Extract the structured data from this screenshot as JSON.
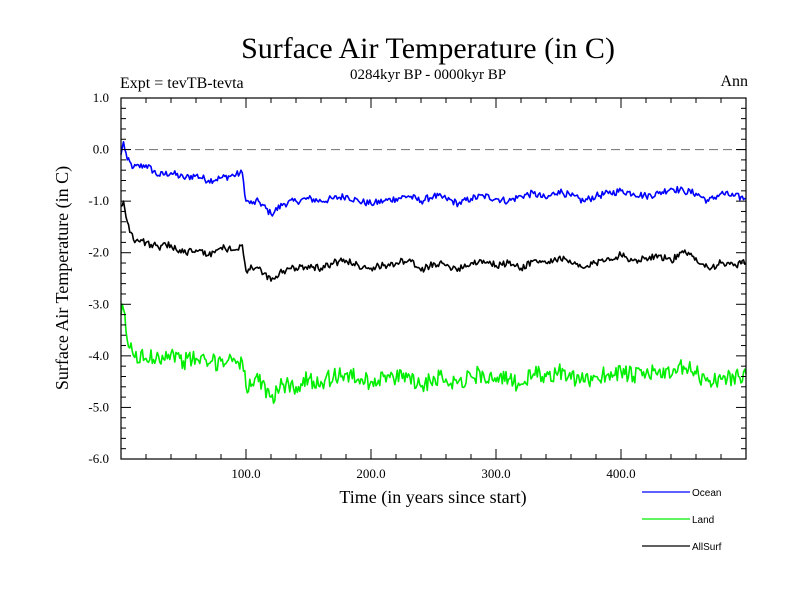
{
  "chart_data": {
    "type": "line",
    "title": "Surface Air Temperature (in C)",
    "subtitle": "0284kyr BP - 0000kyr BP",
    "left_annotation": "Expt = tevTB-tevta",
    "right_annotation": "Ann",
    "xlabel": "Time (in years since start)",
    "ylabel": "Surface Air Temperature (in C)",
    "xlim": [
      0,
      500
    ],
    "ylim": [
      -6.0,
      1.0
    ],
    "x_ticks": [
      100,
      200,
      300,
      400
    ],
    "x_tick_labels": [
      "100.0",
      "200.0",
      "300.0",
      "400.0"
    ],
    "y_ticks": [
      1.0,
      0.0,
      -1.0,
      -2.0,
      -3.0,
      -4.0,
      -5.0,
      -6.0
    ],
    "y_tick_labels": [
      "1.0",
      "0.0",
      "-1.0",
      "-2.0",
      "-3.0",
      "-4.0",
      "-5.0",
      "-6.0"
    ],
    "reference_line": {
      "y": 0.0,
      "style": "dashed",
      "color": "#808080"
    },
    "series": [
      {
        "name": "Ocean",
        "color": "#0000ff",
        "x": [
          0,
          2,
          5,
          10,
          20,
          30,
          40,
          50,
          60,
          70,
          80,
          90,
          97,
          100,
          105,
          110,
          120,
          130,
          140,
          150,
          160,
          170,
          180,
          190,
          200,
          210,
          220,
          230,
          240,
          250,
          260,
          270,
          280,
          290,
          300,
          310,
          320,
          330,
          340,
          350,
          360,
          370,
          380,
          390,
          400,
          410,
          420,
          430,
          440,
          450,
          460,
          470,
          480,
          490,
          500
        ],
        "values": [
          -0.1,
          0.15,
          -0.2,
          -0.35,
          -0.3,
          -0.5,
          -0.45,
          -0.55,
          -0.5,
          -0.6,
          -0.55,
          -0.5,
          -0.45,
          -1.0,
          -1.05,
          -1.0,
          -1.25,
          -1.05,
          -1.0,
          -0.95,
          -1.0,
          -0.95,
          -0.9,
          -1.0,
          -1.05,
          -1.0,
          -0.95,
          -0.9,
          -1.0,
          -0.9,
          -0.95,
          -1.05,
          -0.95,
          -0.9,
          -0.95,
          -1.0,
          -0.9,
          -0.85,
          -0.95,
          -0.8,
          -0.9,
          -1.0,
          -0.9,
          -0.85,
          -0.8,
          -0.85,
          -0.9,
          -0.85,
          -0.75,
          -0.8,
          -0.85,
          -1.0,
          -0.85,
          -0.9,
          -0.95
        ]
      },
      {
        "name": "Land",
        "color": "#00ee00",
        "x": [
          0,
          2,
          5,
          10,
          20,
          30,
          40,
          50,
          60,
          70,
          80,
          90,
          97,
          100,
          105,
          110,
          120,
          130,
          140,
          150,
          160,
          170,
          180,
          190,
          200,
          210,
          220,
          230,
          240,
          250,
          260,
          270,
          280,
          290,
          300,
          310,
          320,
          330,
          340,
          350,
          360,
          370,
          380,
          390,
          400,
          410,
          420,
          430,
          440,
          450,
          460,
          470,
          480,
          490,
          500
        ],
        "values": [
          -3.2,
          -3.1,
          -3.7,
          -4.0,
          -4.05,
          -4.0,
          -3.95,
          -4.1,
          -4.05,
          -4.15,
          -4.1,
          -4.05,
          -4.1,
          -4.6,
          -4.55,
          -4.5,
          -4.8,
          -4.55,
          -4.6,
          -4.45,
          -4.5,
          -4.4,
          -4.35,
          -4.45,
          -4.5,
          -4.4,
          -4.45,
          -4.35,
          -4.6,
          -4.4,
          -4.45,
          -4.5,
          -4.4,
          -4.35,
          -4.5,
          -4.45,
          -4.55,
          -4.35,
          -4.4,
          -4.3,
          -4.45,
          -4.5,
          -4.4,
          -4.35,
          -4.3,
          -4.4,
          -4.35,
          -4.3,
          -4.4,
          -4.2,
          -4.35,
          -4.5,
          -4.45,
          -4.4,
          -4.35
        ]
      },
      {
        "name": "AllSurf",
        "color": "#000000",
        "x": [
          0,
          2,
          5,
          10,
          20,
          30,
          40,
          50,
          60,
          70,
          80,
          90,
          97,
          100,
          105,
          110,
          120,
          130,
          140,
          150,
          160,
          170,
          180,
          190,
          200,
          210,
          220,
          230,
          240,
          250,
          260,
          270,
          280,
          290,
          300,
          310,
          320,
          330,
          340,
          350,
          360,
          370,
          380,
          390,
          400,
          410,
          420,
          430,
          440,
          450,
          460,
          470,
          480,
          490,
          500
        ],
        "values": [
          -1.1,
          -1.0,
          -1.4,
          -1.75,
          -1.8,
          -1.9,
          -1.85,
          -2.0,
          -1.95,
          -2.05,
          -1.9,
          -1.95,
          -1.85,
          -2.35,
          -2.3,
          -2.3,
          -2.55,
          -2.35,
          -2.3,
          -2.25,
          -2.3,
          -2.2,
          -2.15,
          -2.25,
          -2.3,
          -2.25,
          -2.2,
          -2.15,
          -2.35,
          -2.2,
          -2.25,
          -2.3,
          -2.2,
          -2.15,
          -2.25,
          -2.2,
          -2.3,
          -2.15,
          -2.2,
          -2.1,
          -2.2,
          -2.3,
          -2.2,
          -2.1,
          -2.05,
          -2.15,
          -2.1,
          -2.05,
          -2.15,
          -2.0,
          -2.1,
          -2.3,
          -2.2,
          -2.25,
          -2.2
        ]
      }
    ],
    "legend": {
      "placement": "bottom-right",
      "entries": [
        "Ocean",
        "Land",
        "AllSurf"
      ]
    }
  }
}
